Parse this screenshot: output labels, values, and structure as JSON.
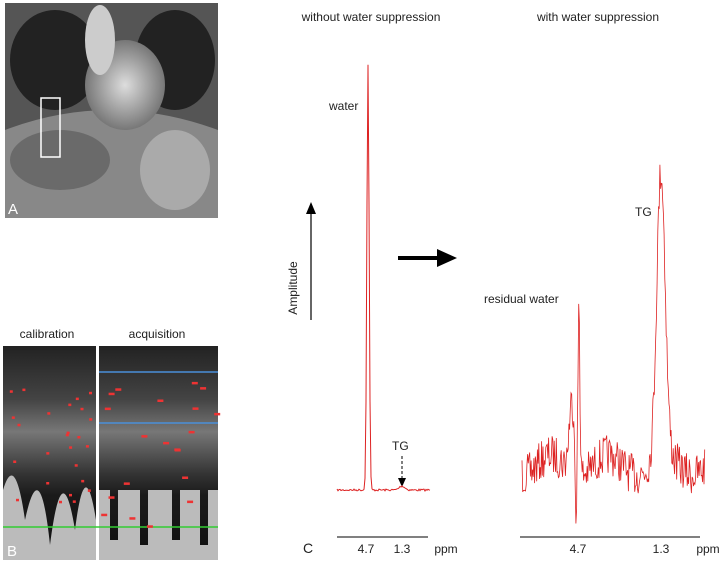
{
  "panel_a": {
    "label": "A"
  },
  "panel_b": {
    "label": "B",
    "calibration_title": "calibration",
    "acquisition_title": "acquisition"
  },
  "panel_c": {
    "label": "C",
    "left_title": "without water suppression",
    "right_title": "with water suppression",
    "y_axis_label": "Amplitude",
    "annotations": {
      "water": "water",
      "tg_left": "TG",
      "tg_right": "TG",
      "residual_water": "residual water"
    },
    "x_ticks_left": [
      4.7,
      1.3
    ],
    "x_ticks_right": [
      4.7,
      1.3
    ],
    "x_unit_left": "ppm",
    "x_unit_right": "ppm"
  }
}
